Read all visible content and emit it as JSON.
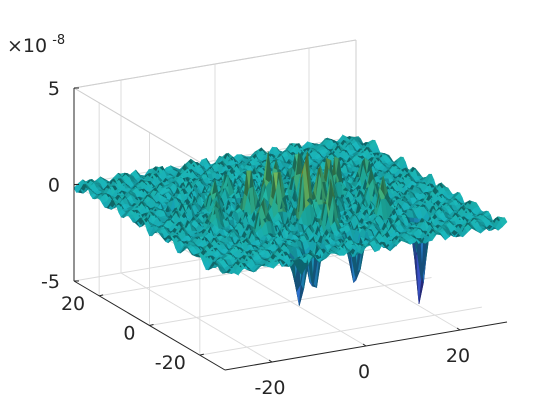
{
  "chart_data": {
    "type": "surface",
    "title": "",
    "z_exponent": {
      "base": "×10",
      "power": "-8"
    },
    "z_ticks": [
      "5",
      "0",
      "-5"
    ],
    "z_tick_values": [
      5,
      0,
      -5
    ],
    "zlim": [
      -5,
      5
    ],
    "x_ticks": [
      "-20",
      "0",
      "20"
    ],
    "x_tick_values": [
      -20,
      0,
      20
    ],
    "y_ticks": [
      "20",
      "0",
      "-20"
    ],
    "y_tick_values": [
      20,
      0,
      -20
    ],
    "xlim": [
      -30,
      30
    ],
    "ylim": [
      -30,
      30
    ],
    "grid": true,
    "colormap": "parula",
    "colors": {
      "low": "#3e26a8",
      "mid": "#1fb8ad",
      "high": "#f9e11e",
      "axis": "#262626",
      "grid": "#dcdcdc"
    },
    "peaks": [
      {
        "x": -2,
        "y": -10,
        "z": 3.6
      },
      {
        "x": 2,
        "y": -8,
        "z": 3.2
      },
      {
        "x": -6,
        "y": -6,
        "z": 2.9
      },
      {
        "x": 6,
        "y": -4,
        "z": 2.6
      },
      {
        "x": -10,
        "y": -2,
        "z": 2.4
      },
      {
        "x": 10,
        "y": 0,
        "z": 2.1
      },
      {
        "x": -4,
        "y": 2,
        "z": 2.3
      },
      {
        "x": 4,
        "y": 4,
        "z": 2.0
      },
      {
        "x": 0,
        "y": 6,
        "z": 1.8
      },
      {
        "x": -14,
        "y": 4,
        "z": 1.6
      },
      {
        "x": 14,
        "y": -6,
        "z": 1.7
      },
      {
        "x": -8,
        "y": 10,
        "z": 1.4
      },
      {
        "x": 8,
        "y": 12,
        "z": 1.2
      },
      {
        "x": -18,
        "y": -4,
        "z": 1.5
      },
      {
        "x": 18,
        "y": 4,
        "z": 1.3
      },
      {
        "x": 0,
        "y": -16,
        "z": 2.5
      },
      {
        "x": -12,
        "y": -12,
        "z": 1.8
      },
      {
        "x": 12,
        "y": -14,
        "z": 1.9
      }
    ],
    "troughs": [
      {
        "x": 18,
        "y": -18,
        "z": -4.8
      },
      {
        "x": 2,
        "y": -22,
        "z": -3.0
      },
      {
        "x": -8,
        "y": -24,
        "z": -2.5
      },
      {
        "x": -12,
        "y": -26,
        "z": -2.8
      },
      {
        "x": 10,
        "y": 16,
        "z": -1.2
      },
      {
        "x": -20,
        "y": 10,
        "z": -1.0
      }
    ]
  }
}
